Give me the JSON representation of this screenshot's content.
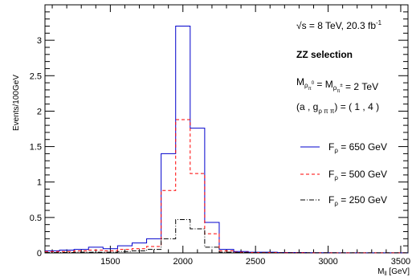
{
  "chart_data": {
    "type": "line",
    "title": "",
    "xlabel": "M_ll [GeV]",
    "ylabel": "Events/100GeV",
    "xlim": [
      1050,
      3550
    ],
    "ylim": [
      0,
      3.5
    ],
    "x_ticks": [
      1500,
      2000,
      2500,
      3000,
      3500
    ],
    "y_ticks": [
      0,
      0.5,
      1,
      1.5,
      2,
      2.5,
      3
    ],
    "x_tick_labels": [
      "1500",
      "2000",
      "2500",
      "3000",
      "3500"
    ],
    "y_tick_labels": [
      "0",
      "0.5",
      "1",
      "1.5",
      "2",
      "2.5",
      "3"
    ],
    "bin_edges": [
      1050,
      1150,
      1250,
      1350,
      1450,
      1550,
      1650,
      1750,
      1850,
      1950,
      2050,
      2150,
      2250,
      2350,
      2450,
      2550,
      2650,
      2750,
      2850,
      2950,
      3050,
      3150,
      3250,
      3350,
      3450,
      3550
    ],
    "series": [
      {
        "name": "F_ρ = 650 GeV",
        "color": "#0000cc",
        "style": "solid",
        "values": [
          0.03,
          0.04,
          0.05,
          0.08,
          0.06,
          0.1,
          0.14,
          0.2,
          1.4,
          3.2,
          1.76,
          0.43,
          0.05,
          0.02,
          0.01,
          0.01,
          0.005,
          0.005,
          0.003,
          0.003,
          0.002,
          0.002,
          0.002,
          0.001,
          0.001
        ]
      },
      {
        "name": "F_ρ = 500 GeV",
        "color": "#ff0000",
        "style": "dashed",
        "values": [
          0.02,
          0.02,
          0.03,
          0.04,
          0.03,
          0.05,
          0.06,
          0.09,
          0.88,
          1.88,
          1.12,
          0.27,
          0.03,
          0.01,
          0.005,
          0.005,
          0.003,
          0.003,
          0.002,
          0.002,
          0.001,
          0.001,
          0.001,
          0.001,
          0.001
        ]
      },
      {
        "name": "F_ρ = 250 GeV",
        "color": "#000000",
        "style": "dashdot",
        "values": [
          0.005,
          0.005,
          0.01,
          0.01,
          0.01,
          0.02,
          0.03,
          0.05,
          0.2,
          0.47,
          0.34,
          0.08,
          0.01,
          0.005,
          0.002,
          0.002,
          0.001,
          0.001,
          0.001,
          0.001,
          0.001,
          0.001,
          0.001,
          0.001,
          0.001
        ]
      }
    ],
    "legend_position": "right",
    "grid": false
  },
  "annotations": {
    "energy": "√s = 8 TeV, 20.3 fb⁻¹",
    "selection": "ZZ selection",
    "mass": "M_ρ0 = M_ρ± = 2 TeV",
    "couplings": "(a , g_ρππ) = ( 1 , 4 )"
  }
}
